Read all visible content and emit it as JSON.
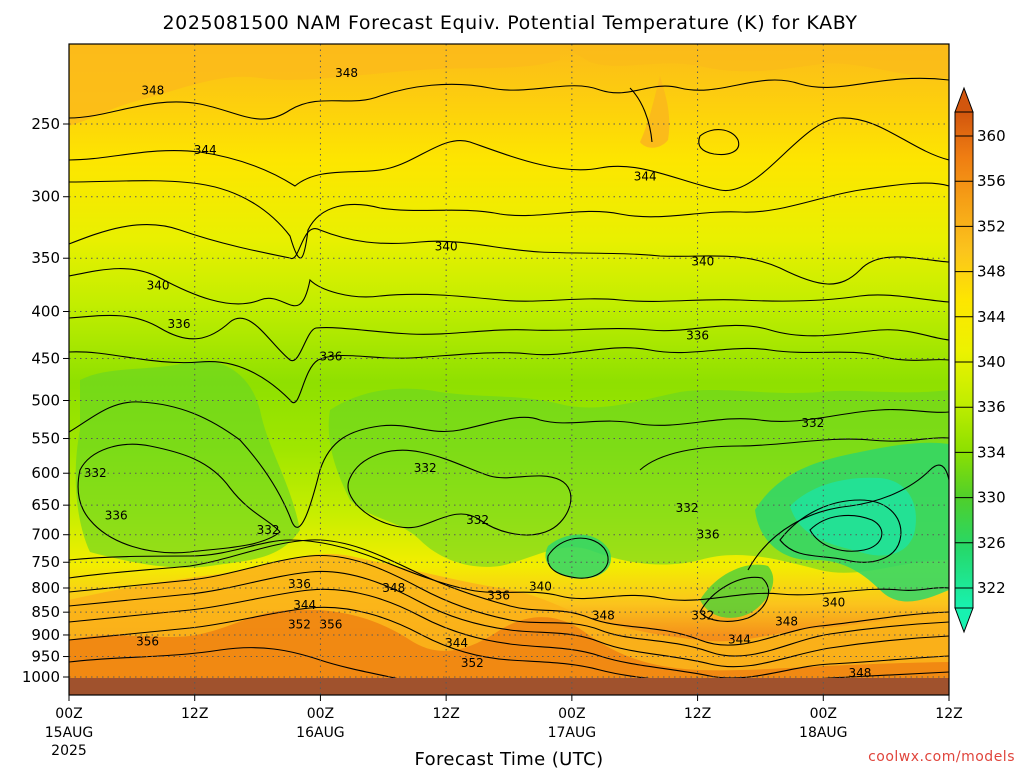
{
  "title": "2025081500 NAM Forecast Equiv. Potential Temperature (K) for KABY",
  "xlabel": "Forecast Time (UTC)",
  "credit": "coolwx.com/models",
  "colors": {
    "ground": "#a0522d",
    "frame": "#000000",
    "credit": "#e0453c",
    "contour": "#000000"
  },
  "chart_data": {
    "type": "heatmap",
    "title": "2025081500 NAM Forecast Equiv. Potential Temperature (K) for KABY",
    "xlabel": "Forecast Time (UTC)",
    "ylabel": "",
    "x_range_hours": [
      0,
      84
    ],
    "y_axis": "pressure (hPa), reversed",
    "x_ticks": [
      {
        "hour": 0,
        "label": "00Z",
        "date": "15AUG",
        "year": "2025"
      },
      {
        "hour": 12,
        "label": "12Z",
        "date": "",
        "year": ""
      },
      {
        "hour": 24,
        "label": "00Z",
        "date": "16AUG",
        "year": ""
      },
      {
        "hour": 36,
        "label": "12Z",
        "date": "",
        "year": ""
      },
      {
        "hour": 48,
        "label": "00Z",
        "date": "17AUG",
        "year": ""
      },
      {
        "hour": 60,
        "label": "12Z",
        "date": "",
        "year": ""
      },
      {
        "hour": 72,
        "label": "00Z",
        "date": "18AUG",
        "year": ""
      },
      {
        "hour": 84,
        "label": "12Z",
        "date": "",
        "year": ""
      }
    ],
    "y_ticks": [
      "250",
      "300",
      "350",
      "400",
      "450",
      "500",
      "550",
      "600",
      "650",
      "700",
      "750",
      "800",
      "850",
      "900",
      "950",
      "1000"
    ],
    "colorbar": {
      "labels": [
        "360",
        "356",
        "352",
        "348",
        "344",
        "340",
        "336",
        "334",
        "330",
        "326",
        "322"
      ],
      "colors": [
        "#cc4d0a",
        "#f07f10",
        "#f79d14",
        "#fbc51e",
        "#fde600",
        "#f4ee00",
        "#d6f200",
        "#a2e800",
        "#5ad62e",
        "#2ccd5c",
        "#1ae88c",
        "#10f5b4"
      ]
    },
    "contour_labels": [
      {
        "text": "348",
        "hour": 8.0,
        "p": 230
      },
      {
        "text": "348",
        "hour": 26.5,
        "p": 220
      },
      {
        "text": "344",
        "hour": 13,
        "p": 267
      },
      {
        "text": "344",
        "hour": 55,
        "p": 285
      },
      {
        "text": "340",
        "hour": 8.5,
        "p": 375
      },
      {
        "text": "340",
        "hour": 36,
        "p": 340
      },
      {
        "text": "340",
        "hour": 60.5,
        "p": 353
      },
      {
        "text": "336",
        "hour": 10.5,
        "p": 413
      },
      {
        "text": "336",
        "hour": 25,
        "p": 448
      },
      {
        "text": "336",
        "hour": 60,
        "p": 425
      },
      {
        "text": "332",
        "hour": 2.5,
        "p": 600
      },
      {
        "text": "332",
        "hour": 34,
        "p": 592
      },
      {
        "text": "336",
        "hour": 4.5,
        "p": 667
      },
      {
        "text": "332",
        "hour": 19,
        "p": 692
      },
      {
        "text": "332",
        "hour": 39,
        "p": 675
      },
      {
        "text": "332",
        "hour": 71,
        "p": 529
      },
      {
        "text": "332",
        "hour": 59,
        "p": 655
      },
      {
        "text": "336",
        "hour": 61,
        "p": 700
      },
      {
        "text": "336",
        "hour": 22,
        "p": 792
      },
      {
        "text": "344",
        "hour": 22.5,
        "p": 835
      },
      {
        "text": "352",
        "hour": 22,
        "p": 877
      },
      {
        "text": "356",
        "hour": 25,
        "p": 877
      },
      {
        "text": "348",
        "hour": 31,
        "p": 800
      },
      {
        "text": "336",
        "hour": 41,
        "p": 815
      },
      {
        "text": "340",
        "hour": 45,
        "p": 797
      },
      {
        "text": "348",
        "hour": 51,
        "p": 857
      },
      {
        "text": "344",
        "hour": 37,
        "p": 918
      },
      {
        "text": "352",
        "hour": 38.5,
        "p": 965
      },
      {
        "text": "356",
        "hour": 7.5,
        "p": 915
      },
      {
        "text": "332",
        "hour": 60.5,
        "p": 857
      },
      {
        "text": "344",
        "hour": 64,
        "p": 910
      },
      {
        "text": "348",
        "hour": 68.5,
        "p": 870
      },
      {
        "text": "340",
        "hour": 73,
        "p": 830
      },
      {
        "text": "348",
        "hour": 75.5,
        "p": 990
      }
    ]
  }
}
